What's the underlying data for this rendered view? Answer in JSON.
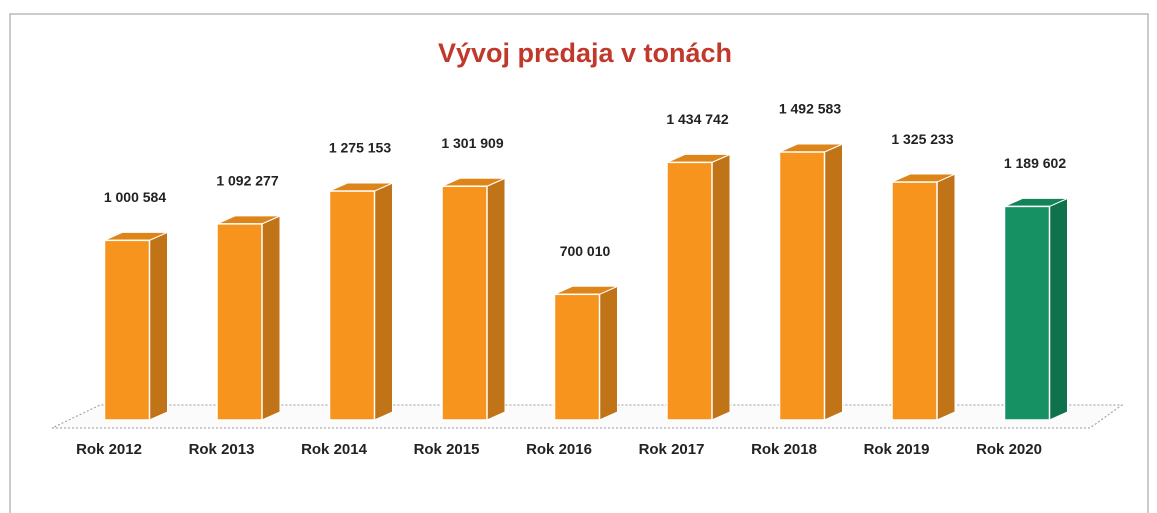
{
  "chart_data": {
    "type": "bar3d",
    "title": "Vývoj predaja v tonách",
    "categories": [
      "Rok 2012",
      "Rok 2013",
      "Rok 2014",
      "Rok 2015",
      "Rok 2016",
      "Rok 2017",
      "Rok 2018",
      "Rok 2019",
      "Rok 2020"
    ],
    "values": [
      1000584,
      1092277,
      1275153,
      1301909,
      700010,
      1434742,
      1492583,
      1325233,
      1189602
    ],
    "value_labels": [
      "1 000 584",
      "1 092 277",
      "1 275 153",
      "1 301 909",
      "700 010",
      "1 434 742",
      "1 492 583",
      "1 325 233",
      "1 189 602"
    ],
    "colors": [
      "#f7941d",
      "#f7941d",
      "#f7941d",
      "#f7941d",
      "#f7941d",
      "#f7941d",
      "#f7941d",
      "#f7941d",
      "#159163"
    ]
  }
}
